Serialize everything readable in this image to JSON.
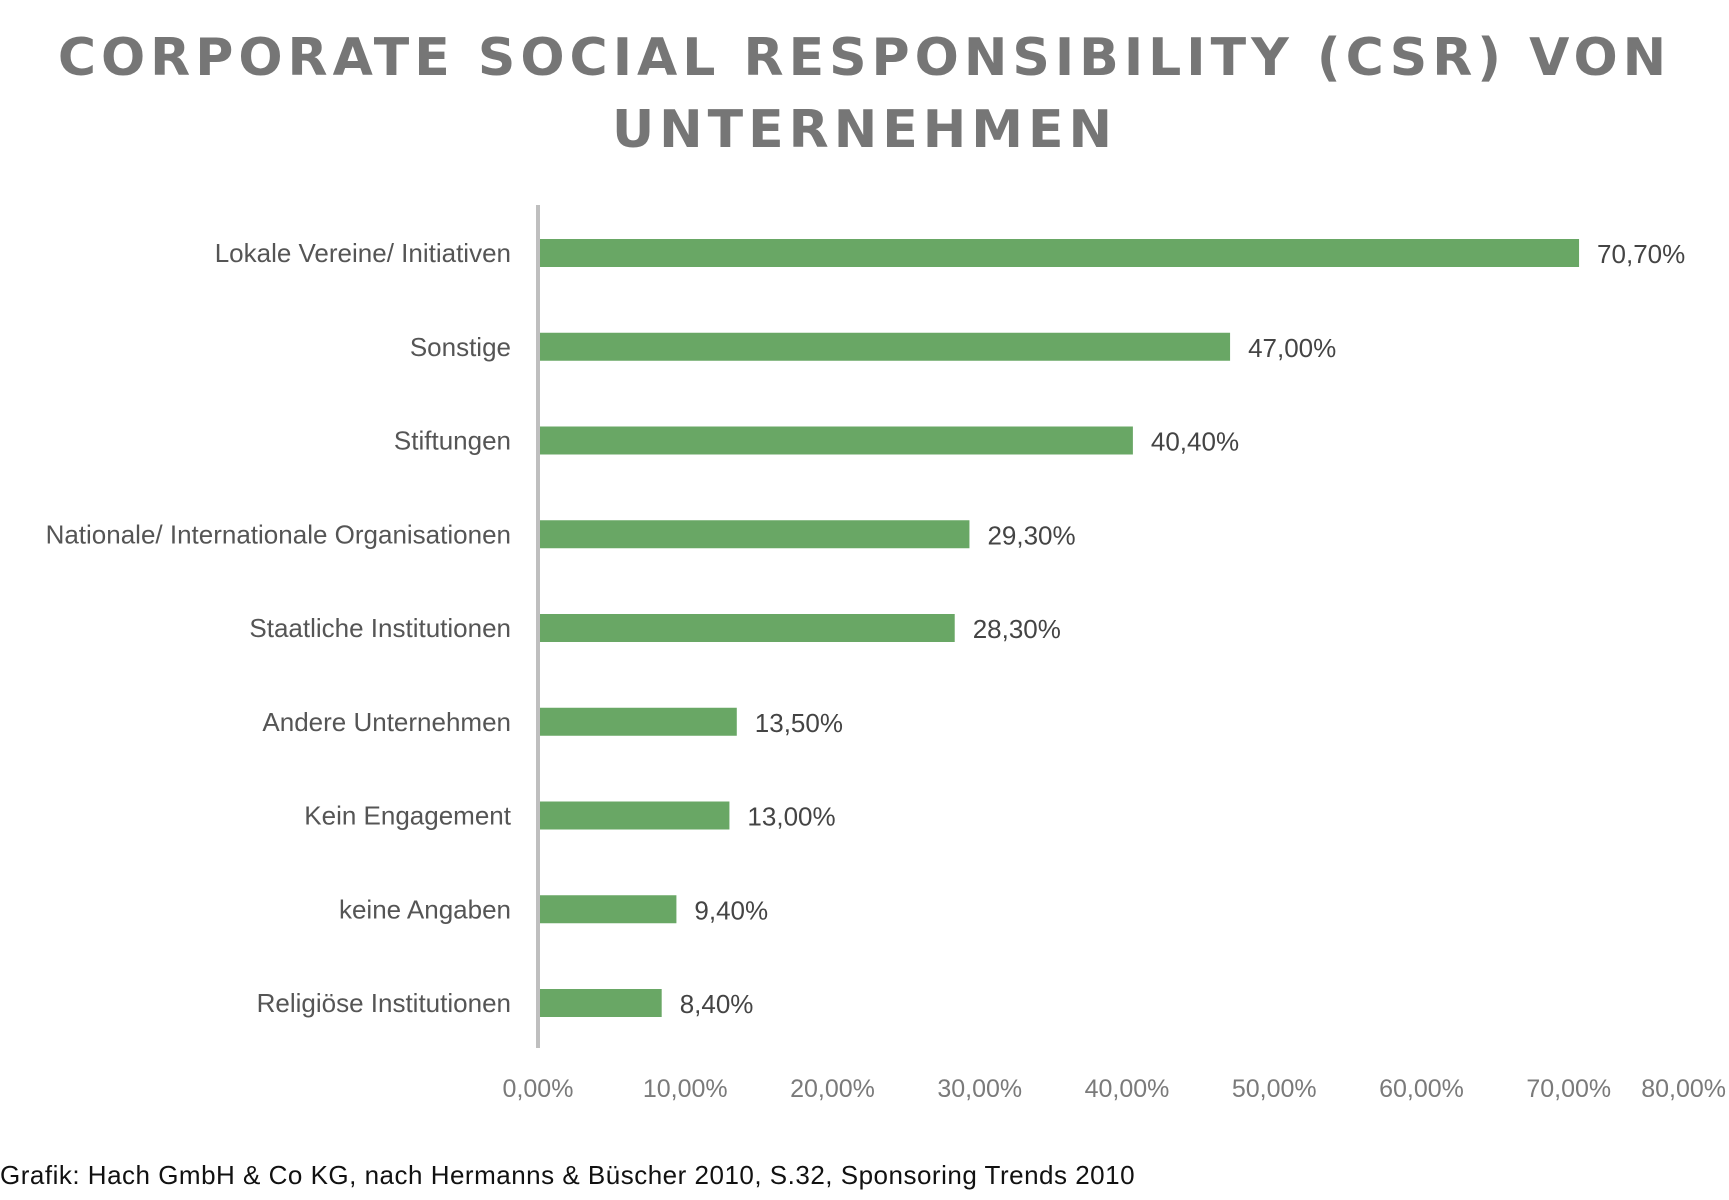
{
  "chart_data": {
    "type": "bar",
    "orientation": "horizontal",
    "title": "CORPORATE SOCIAL RESPONSIBILITY (CSR) VON UNTERNEHMEN",
    "categories": [
      "Lokale Vereine/ Initiativen",
      "Sonstige",
      "Stiftungen",
      "Nationale/ Internationale Organisationen",
      "Staatliche Institutionen",
      "Andere Unternehmen",
      "Kein Engagement",
      "keine Angaben",
      "Religiöse Institutionen"
    ],
    "values": [
      70.7,
      47.0,
      40.4,
      29.3,
      28.3,
      13.5,
      13.0,
      9.4,
      8.4
    ],
    "value_labels": [
      "70,70%",
      "47,00%",
      "40,40%",
      "29,30%",
      "28,30%",
      "13,50%",
      "13,00%",
      "9,40%",
      "8,40%"
    ],
    "xlim": [
      0,
      80
    ],
    "x_ticks": [
      0,
      10,
      20,
      30,
      40,
      50,
      60,
      70,
      80
    ],
    "x_tick_labels": [
      "0,00%",
      "10,00%",
      "20,00%",
      "30,00%",
      "40,00%",
      "50,00%",
      "60,00%",
      "70,00%",
      "80,00%"
    ],
    "xlabel": "",
    "ylabel": "",
    "grid": false,
    "legend": "none",
    "bar_color": "#69a765",
    "axis_color": "#bfbfbf"
  },
  "source": "Grafik: Hach GmbH & Co KG, nach Hermanns & Büscher 2010, S.32, Sponsoring Trends 2010"
}
